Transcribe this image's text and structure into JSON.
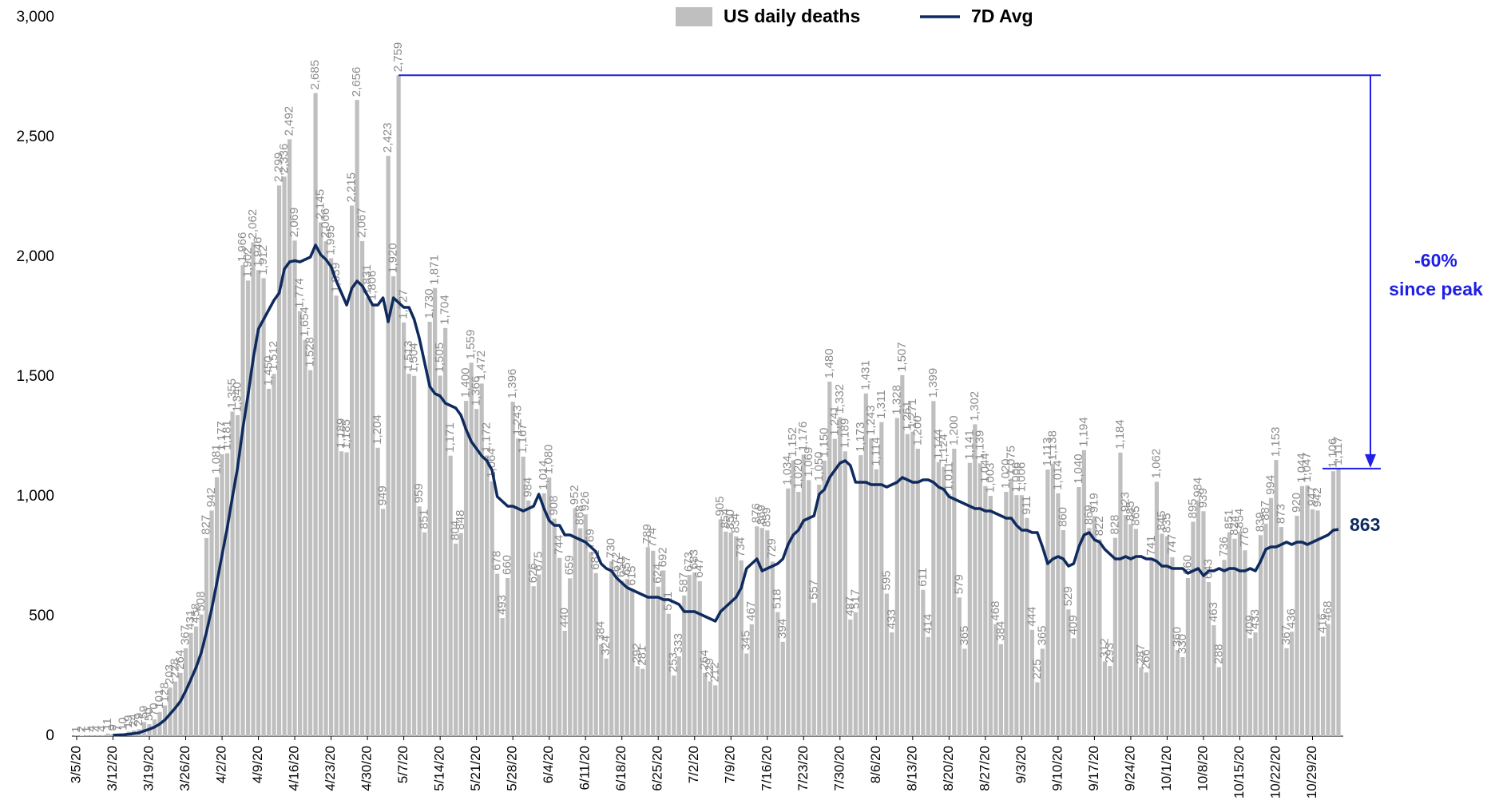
{
  "chart_data": {
    "type": "bar-line",
    "categories": [
      "3/5/20",
      null,
      null,
      null,
      null,
      null,
      null,
      "3/12/20",
      null,
      null,
      null,
      null,
      null,
      null,
      "3/19/20",
      null,
      null,
      null,
      null,
      null,
      null,
      "3/26/20",
      null,
      null,
      null,
      null,
      null,
      null,
      "4/2/20",
      null,
      null,
      null,
      null,
      null,
      null,
      "4/9/20",
      null,
      null,
      null,
      null,
      null,
      null,
      "4/16/20",
      null,
      null,
      null,
      null,
      null,
      null,
      "4/23/20",
      null,
      null,
      null,
      null,
      null,
      null,
      "4/30/20",
      null,
      null,
      null,
      null,
      null,
      null,
      "5/7/20",
      null,
      null,
      null,
      null,
      null,
      null,
      "5/14/20",
      null,
      null,
      null,
      null,
      null,
      null,
      "5/21/20",
      null,
      null,
      null,
      null,
      null,
      null,
      "5/28/20",
      null,
      null,
      null,
      null,
      null,
      null,
      "6/4/20",
      null,
      null,
      null,
      null,
      null,
      null,
      "6/11/20",
      null,
      null,
      null,
      null,
      null,
      null,
      "6/18/20",
      null,
      null,
      null,
      null,
      null,
      null,
      "6/25/20",
      null,
      null,
      null,
      null,
      null,
      null,
      "7/2/20",
      null,
      null,
      null,
      null,
      null,
      null,
      "7/9/20",
      null,
      null,
      null,
      null,
      null,
      null,
      "7/16/20",
      null,
      null,
      null,
      null,
      null,
      null,
      "7/23/20",
      null,
      null,
      null,
      null,
      null,
      null,
      "7/30/20",
      null,
      null,
      null,
      null,
      null,
      null,
      "8/6/20",
      null,
      null,
      null,
      null,
      null,
      null,
      "8/13/20",
      null,
      null,
      null,
      null,
      null,
      null,
      "8/20/20",
      null,
      null,
      null,
      null,
      null,
      null,
      "8/27/20",
      null,
      null,
      null,
      null,
      null,
      null,
      "9/3/20",
      null,
      null,
      null,
      null,
      null,
      null,
      "9/10/20",
      null,
      null,
      null,
      null,
      null,
      null,
      "9/17/20",
      null,
      null,
      null,
      null,
      null,
      null,
      "9/24/20",
      null,
      null,
      null,
      null,
      null,
      null,
      "10/1/20",
      null,
      null,
      null,
      null,
      null,
      null,
      "10/8/20",
      null,
      null,
      null,
      null,
      null,
      null,
      "10/15/20",
      null,
      null,
      null,
      null,
      null,
      null,
      "10/22/20",
      null,
      null,
      null,
      null,
      null,
      null,
      "10/29/20",
      null,
      null,
      null,
      null,
      null
    ],
    "series": [
      {
        "name": "US daily deaths",
        "type": "bar",
        "color": "#bfbfbf",
        "values": [
          1,
          2,
          1,
          4,
          4,
          4,
          11,
          9,
          7,
          10,
          19,
          24,
          29,
          59,
          50,
          70,
          101,
          128,
          203,
          228,
          264,
          367,
          431,
          458,
          508,
          827,
          942,
          1081,
          1177,
          1181,
          1355,
          1340,
          1966,
          1902,
          2062,
          1946,
          1912,
          1450,
          1512,
          2299,
          2336,
          2492,
          2069,
          1774,
          1654,
          1528,
          2685,
          2145,
          2066,
          1995,
          1839,
          1189,
          1185,
          2215,
          2656,
          2067,
          1831,
          1806,
          1204,
          949,
          2423,
          1920,
          2759,
          1727,
          1513,
          1504,
          959,
          851,
          1730,
          1871,
          1505,
          1704,
          1171,
          804,
          848,
          1400,
          1559,
          1366,
          1472,
          1172,
          1064,
          678,
          493,
          660,
          1396,
          1243,
          1167,
          984,
          626,
          675,
          1014,
          1080,
          908,
          744,
          440,
          659,
          952,
          868,
          926,
          769,
          681,
          384,
          324,
          730,
          672,
          650,
          657,
          615,
          292,
          281,
          789,
          774,
          624,
          692,
          511,
          253,
          333,
          587,
          673,
          683,
          647,
          264,
          229,
          212,
          905,
          854,
          850,
          834,
          734,
          345,
          467,
          876,
          869,
          859,
          729,
          518,
          394,
          1034,
          1152,
          1020,
          1176,
          1069,
          557,
          1050,
          1150,
          1480,
          1241,
          1332,
          1189,
          487,
          517,
          1173,
          1431,
          1243,
          1114,
          1311,
          595,
          433,
          1328,
          1507,
          1261,
          1271,
          1200,
          611,
          414,
          1399,
          1144,
          1124,
          1011,
          1200,
          579,
          365,
          1141,
          1302,
          1139,
          1044,
          1003,
          468,
          384,
          1020,
          1075,
          1006,
          1006,
          911,
          444,
          225,
          365,
          1113,
          1138,
          1014,
          860,
          529,
          409,
          1040,
          1194,
          869,
          919,
          822,
          312,
          293,
          828,
          1184,
          923,
          885,
          865,
          287,
          266,
          741,
          1062,
          845,
          835,
          747,
          360,
          330,
          660,
          895,
          984,
          939,
          643,
          463,
          288,
          736,
          851,
          824,
          854,
          776,
          409,
          433,
          839,
          887,
          994,
          1153,
          873,
          367,
          436,
          920,
          1044,
          1047,
          947,
          942,
          416,
          468,
          1106,
          1117
        ],
        "value_labels": [
          null,
          null,
          null,
          null,
          null,
          null,
          null,
          null,
          null,
          null,
          null,
          null,
          null,
          null,
          null,
          null,
          null,
          null,
          null,
          null,
          null,
          null,
          null,
          null,
          null,
          null,
          null,
          "1,081",
          "1,177",
          "1,181",
          "1,355",
          "1,340",
          "1,966",
          "1,902",
          "2,062",
          "1,946",
          "1,912",
          "1,450",
          "1,512",
          "2,299",
          "2,336",
          "2,492",
          "2,069",
          "1,774",
          "1,654",
          "1,528",
          "2,685",
          "2,145",
          "2,066",
          "1,995",
          "1,839",
          "1,189",
          "1,185",
          "2,215",
          "2,656",
          "2,067",
          "1,831",
          "1,806",
          "1,204",
          null,
          "2,423",
          "1,920",
          "2,759",
          "1,727",
          "1,513",
          "1,504",
          null,
          null,
          "1,730",
          "1,871",
          "1,505",
          "1,704",
          "1,171",
          null,
          null,
          "1,400",
          "1,559",
          "1,366",
          "1,472",
          "1,172",
          "1,064",
          null,
          null,
          null,
          "1,396",
          "1,243",
          "1,167",
          null,
          null,
          null,
          "1,014",
          "1,080",
          null,
          null,
          null,
          null,
          null,
          null,
          null,
          null,
          null,
          null,
          null,
          null,
          null,
          null,
          null,
          null,
          null,
          null,
          null,
          null,
          null,
          null,
          null,
          null,
          null,
          null,
          null,
          null,
          null,
          null,
          null,
          null,
          null,
          null,
          null,
          null,
          null,
          null,
          null,
          null,
          null,
          null,
          null,
          null,
          null,
          "1,034",
          "1,152",
          "1,020",
          "1,176",
          "1,069",
          null,
          "1,050",
          "1,150",
          "1,480",
          "1,241",
          "1,332",
          "1,189",
          null,
          null,
          "1,173",
          "1,431",
          "1,243",
          "1,114",
          "1,311",
          null,
          null,
          "1,328",
          "1,507",
          "1,261",
          "1,271",
          "1,200",
          null,
          null,
          "1,399",
          "1,144",
          "1,124",
          "1,011",
          "1,200",
          null,
          null,
          "1,141",
          "1,302",
          "1,139",
          "1,044",
          "1,003",
          null,
          null,
          "1,020",
          "1,075",
          "1,006",
          "1,006",
          null,
          null,
          null,
          null,
          "1,113",
          "1,138",
          "1,014",
          null,
          null,
          null,
          "1,040",
          "1,194",
          null,
          null,
          null,
          null,
          null,
          null,
          "1,184",
          null,
          null,
          null,
          null,
          null,
          null,
          "1,062",
          null,
          null,
          null,
          null,
          null,
          null,
          null,
          null,
          null,
          null,
          null,
          null,
          null,
          null,
          null,
          null,
          null,
          null,
          null,
          null,
          null,
          null,
          "1,153",
          null,
          null,
          null,
          null,
          "1,044",
          "1,047",
          null,
          null,
          null,
          null,
          "1,106",
          "1,117"
        ]
      },
      {
        "name": "7D Avg",
        "type": "line",
        "color": "#0e2a5e",
        "values": [
          null,
          null,
          null,
          null,
          null,
          null,
          null,
          4,
          5,
          6,
          8,
          11,
          14,
          22,
          29,
          38,
          51,
          68,
          93,
          118,
          146,
          189,
          237,
          287,
          349,
          435,
          531,
          641,
          757,
          870,
          999,
          1122,
          1285,
          1424,
          1576,
          1700,
          1740,
          1780,
          1820,
          1850,
          1950,
          1980,
          1985,
          1980,
          1990,
          2000,
          2050,
          2010,
          1990,
          1960,
          1900,
          1850,
          1800,
          1870,
          1900,
          1880,
          1840,
          1800,
          1800,
          1830,
          1730,
          1830,
          1810,
          1790,
          1790,
          1740,
          1660,
          1560,
          1460,
          1430,
          1420,
          1390,
          1380,
          1370,
          1340,
          1280,
          1230,
          1200,
          1170,
          1150,
          1110,
          1000,
          980,
          960,
          960,
          950,
          940,
          950,
          960,
          1010,
          950,
          900,
          880,
          880,
          840,
          840,
          830,
          820,
          810,
          790,
          770,
          720,
          700,
          690,
          660,
          640,
          620,
          610,
          600,
          590,
          580,
          580,
          580,
          570,
          570,
          560,
          550,
          520,
          520,
          520,
          510,
          500,
          490,
          480,
          520,
          540,
          560,
          580,
          620,
          700,
          720,
          740,
          690,
          700,
          710,
          720,
          740,
          800,
          840,
          860,
          900,
          910,
          920,
          1010,
          1030,
          1080,
          1110,
          1140,
          1150,
          1130,
          1060,
          1060,
          1060,
          1050,
          1050,
          1050,
          1040,
          1050,
          1060,
          1080,
          1070,
          1060,
          1060,
          1070,
          1070,
          1060,
          1040,
          1030,
          1000,
          990,
          980,
          970,
          960,
          950,
          950,
          940,
          940,
          930,
          920,
          910,
          910,
          880,
          860,
          860,
          850,
          850,
          790,
          720,
          740,
          750,
          740,
          710,
          720,
          790,
          840,
          850,
          820,
          810,
          780,
          760,
          740,
          740,
          750,
          740,
          750,
          750,
          740,
          740,
          730,
          710,
          710,
          700,
          700,
          700,
          680,
          690,
          700,
          670,
          690,
          690,
          700,
          690,
          700,
          700,
          690,
          690,
          700,
          690,
          730,
          780,
          790,
          790,
          800,
          810,
          800,
          810,
          810,
          800,
          810,
          820,
          830,
          840,
          860,
          863
        ]
      }
    ],
    "ylim": [
      0,
      3000
    ],
    "yticks": [
      0,
      500,
      {
        "value": 1000,
        "label": "1,000"
      },
      {
        "value": 1500,
        "label": "1,500"
      },
      {
        "value": 2000,
        "label": "2,000"
      },
      {
        "value": 2500,
        "label": "2,500"
      },
      {
        "value": 3000,
        "label": "3,000"
      }
    ],
    "legend": "top",
    "annotations": [
      "-60%",
      "since peak"
    ],
    "annotation_color": "#1f1fe6"
  }
}
